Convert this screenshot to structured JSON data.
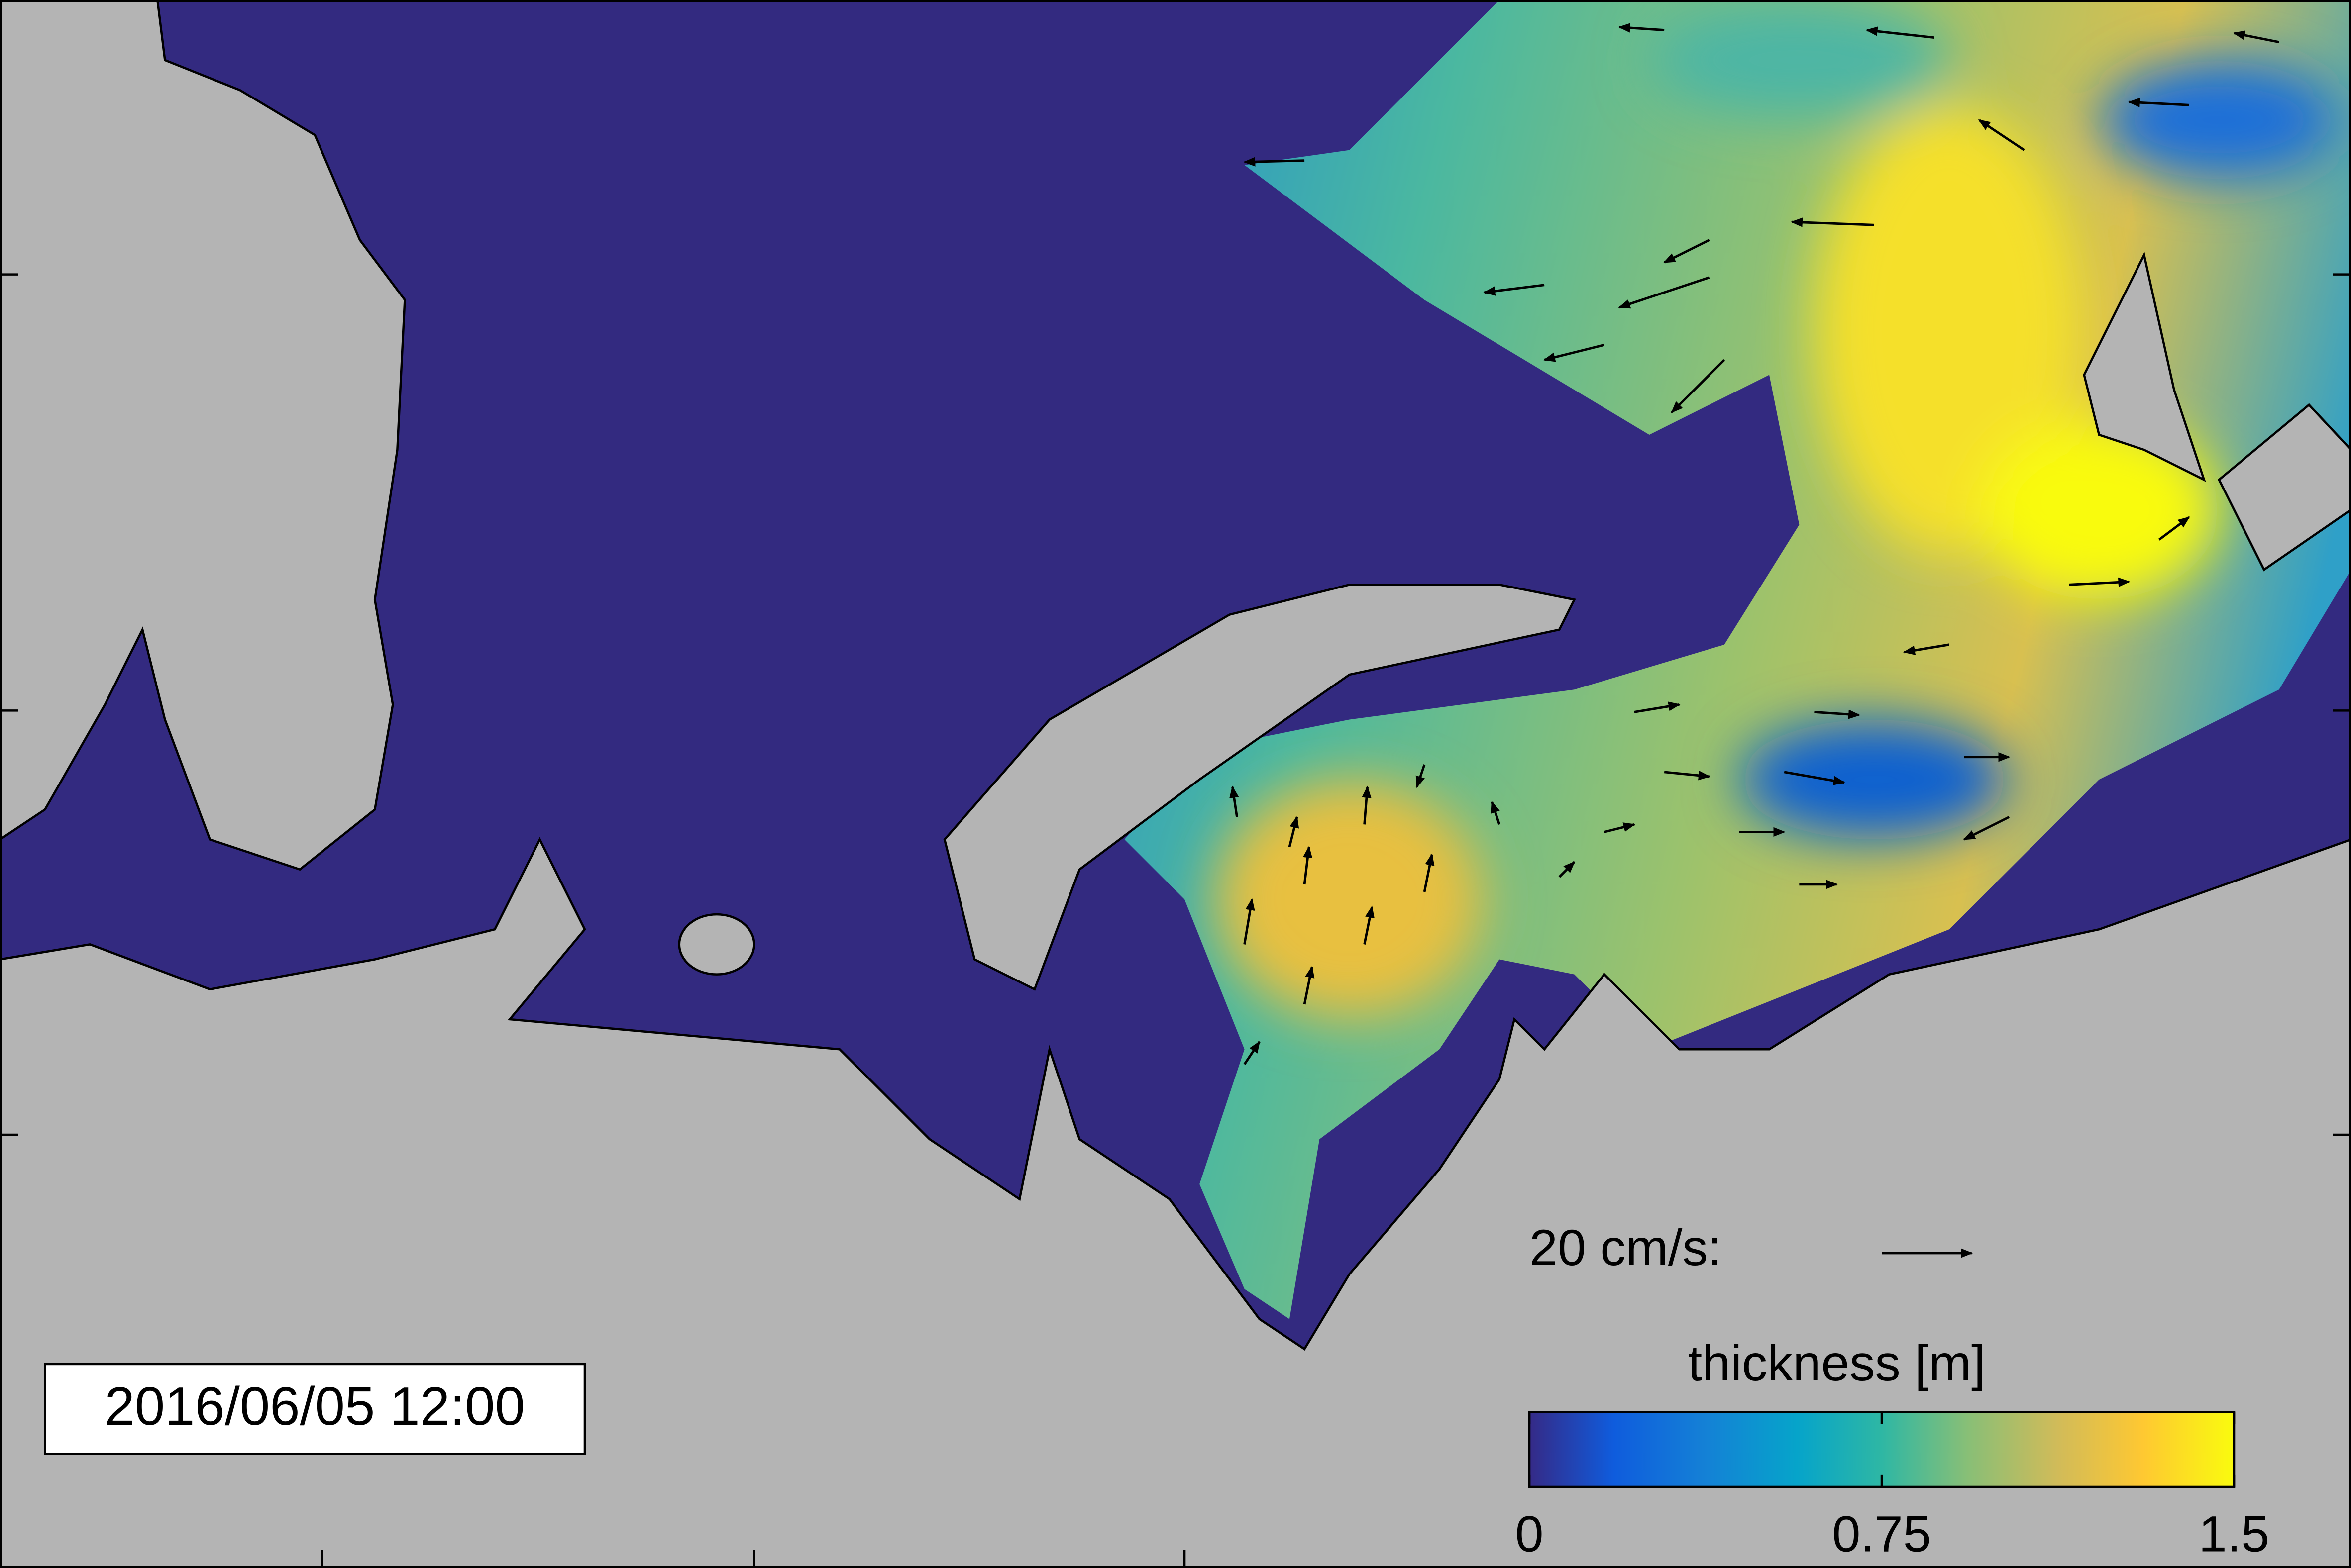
{
  "timestamp": "2016/06/05 12:00",
  "reference_arrow": {
    "label": "20 cm/s:"
  },
  "colorbar": {
    "title": "thickness [m]",
    "lim": [
      0,
      1.5
    ],
    "ticks": [
      0,
      0.75,
      1.5
    ]
  }
}
